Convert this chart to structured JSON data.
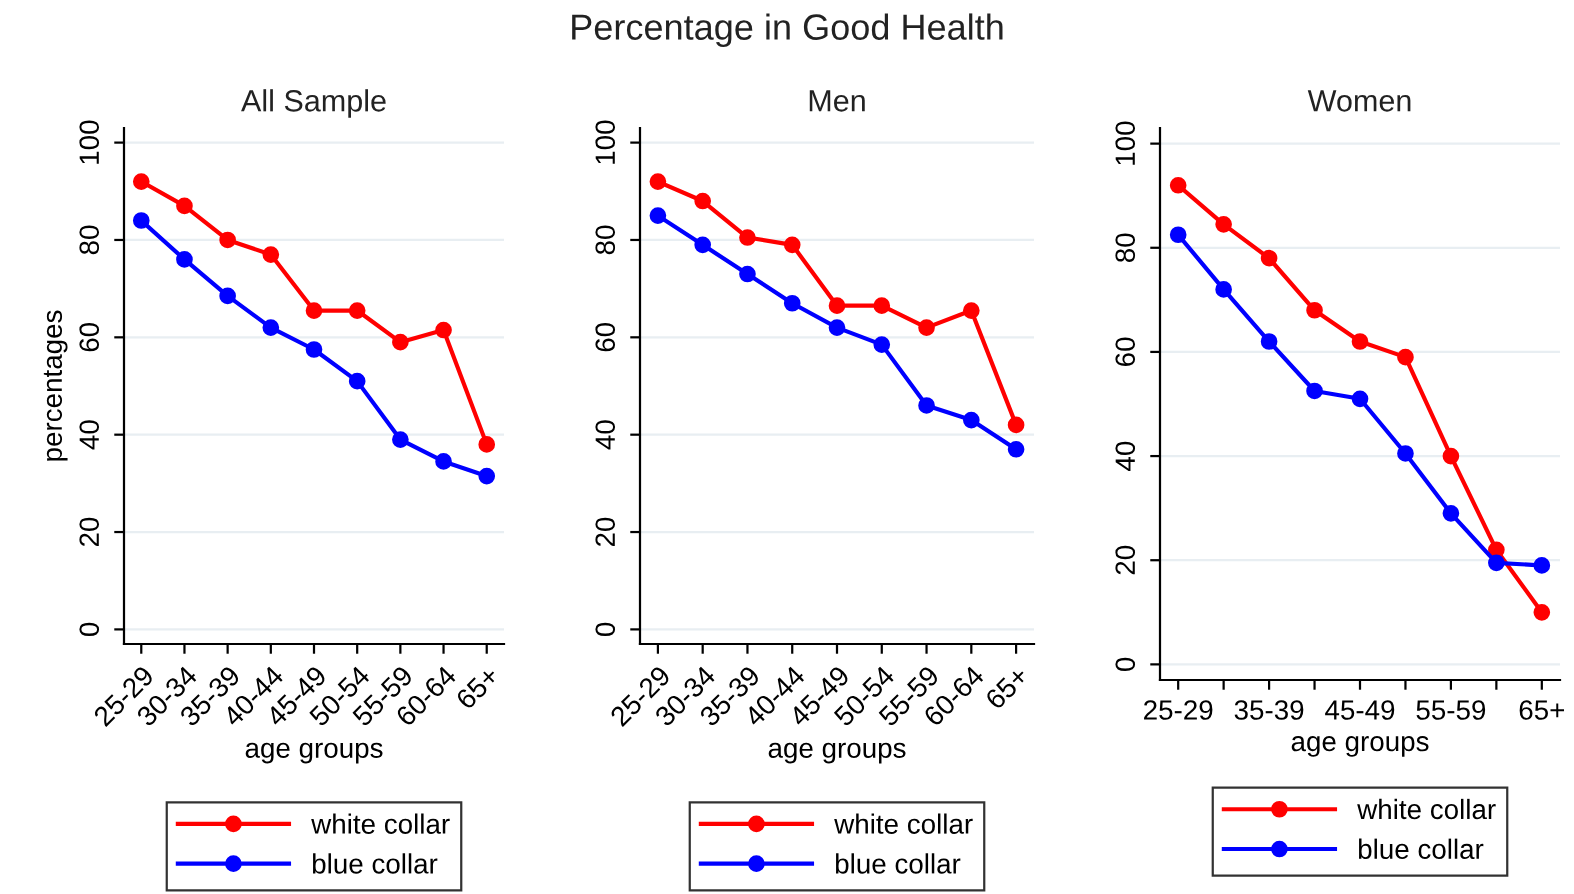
{
  "chart_data": [
    {
      "type": "line",
      "title": "All Sample",
      "ylabel": "percentages",
      "xlabel": "age groups",
      "annotations": [
        "Percentage in Good Health"
      ],
      "categories": [
        "25-29",
        "30-34",
        "35-39",
        "40-44",
        "45-49",
        "50-54",
        "55-59",
        "60-64",
        "65+"
      ],
      "series": [
        {
          "name": "white collar",
          "color": "#ff0000",
          "values": [
            92,
            87,
            80,
            77,
            65.5,
            65.5,
            59,
            61.5,
            38
          ]
        },
        {
          "name": "blue collar",
          "color": "#0000ff",
          "values": [
            84,
            76,
            68.5,
            62,
            57.5,
            51,
            39,
            34.5,
            31.5
          ]
        }
      ],
      "ylim": [
        -3,
        103
      ],
      "yticks": [
        0,
        20,
        40,
        60,
        80,
        100
      ],
      "grid": "y",
      "legend": "bottom",
      "marker": "circle"
    },
    {
      "type": "line",
      "title": "Men",
      "xlabel": "age groups",
      "categories": [
        "25-29",
        "30-34",
        "35-39",
        "40-44",
        "45-49",
        "50-54",
        "55-59",
        "60-64",
        "65+"
      ],
      "series": [
        {
          "name": "white collar",
          "color": "#ff0000",
          "values": [
            92,
            88,
            80.5,
            79,
            66.5,
            66.5,
            62,
            65.5,
            42
          ]
        },
        {
          "name": "blue collar",
          "color": "#0000ff",
          "values": [
            85,
            79,
            73,
            67,
            62,
            58.5,
            46,
            43,
            37
          ]
        }
      ],
      "ylim": [
        -3,
        103
      ],
      "yticks": [
        0,
        20,
        40,
        60,
        80,
        100
      ],
      "grid": "y",
      "legend": "bottom",
      "marker": "circle"
    },
    {
      "type": "line",
      "title": "Women",
      "xlabel": "age groups",
      "categories": [
        "25-29",
        null,
        "35-39",
        null,
        "45-49",
        null,
        "55-59",
        null,
        "65+"
      ],
      "series": [
        {
          "name": "white collar",
          "color": "#ff0000",
          "values": [
            92,
            84.5,
            78,
            68,
            62,
            59,
            40,
            22,
            10
          ]
        },
        {
          "name": "blue collar",
          "color": "#0000ff",
          "values": [
            82.5,
            72,
            62,
            52.5,
            51,
            40.5,
            29,
            19.5,
            19
          ]
        }
      ],
      "ylim": [
        -3,
        103
      ],
      "yticks": [
        0,
        20,
        40,
        60,
        80,
        100
      ],
      "grid": "y",
      "legend": "bottom",
      "marker": "circle"
    }
  ]
}
